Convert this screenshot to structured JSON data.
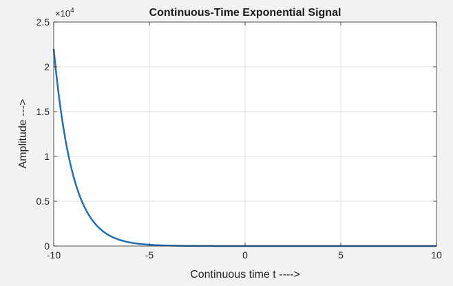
{
  "chart_data": {
    "type": "line",
    "title": "Continuous-Time Exponential Signal",
    "xlabel": "Continuous time t ---->",
    "ylabel": "Amplitude --->",
    "exponent_label": "×10",
    "exponent_power": "4",
    "xlim": [
      -10,
      10
    ],
    "ylim": [
      0,
      2.5
    ],
    "xticks": [
      -10,
      -5,
      0,
      5,
      10
    ],
    "xtick_labels": [
      "-10",
      "-5",
      "0",
      "5",
      "10"
    ],
    "yticks": [
      0,
      0.5,
      1,
      1.5,
      2,
      2.5
    ],
    "ytick_labels": [
      "0",
      "0.5",
      "1",
      "1.5",
      "2",
      "2.5"
    ],
    "grid": true,
    "legend": "none",
    "series": [
      {
        "color": "#1f6fb5",
        "x": [
          -10,
          -9.5,
          -9,
          -8.5,
          -8,
          -7.5,
          -7,
          -6.5,
          -6,
          -5.5,
          -5,
          -4,
          -3,
          -2,
          -1,
          0,
          2.5,
          5,
          7.5,
          10
        ],
        "y": [
          2.2,
          1.33,
          0.81,
          0.49,
          0.3,
          0.18,
          0.11,
          0.066,
          0.04,
          0.024,
          0.015,
          0.0055,
          0.002,
          0.0007,
          0.0003,
          0.0001,
          0,
          0,
          0,
          0
        ]
      }
    ]
  }
}
